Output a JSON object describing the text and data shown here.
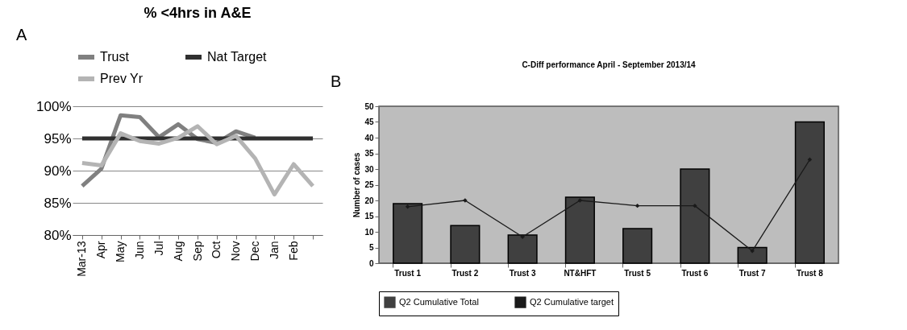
{
  "chart_data": [
    {
      "type": "line",
      "title": "% <4hrs in A&E",
      "annotations": [
        "A"
      ],
      "categories": [
        "Mar-13",
        "Apr",
        "May",
        "Jun",
        "Jul",
        "Aug",
        "Sep",
        "Oct",
        "Nov",
        "Dec",
        "Jan",
        "Feb",
        null
      ],
      "series": [
        {
          "name": "Trust",
          "color": "#808080",
          "values": [
            87.6,
            90.3,
            98.6,
            98.3,
            95.2,
            97.2,
            94.9,
            94.3,
            96.1,
            95.1,
            null,
            null,
            null
          ]
        },
        {
          "name": "Nat Target",
          "color": "#303030",
          "values": [
            95,
            95,
            95,
            95,
            95,
            95,
            95,
            95,
            95,
            95,
            95,
            95,
            95
          ]
        },
        {
          "name": "Prev Yr",
          "color": "#b4b4b4",
          "values": [
            91.2,
            90.8,
            95.8,
            94.6,
            94.2,
            95.1,
            96.9,
            94.1,
            95.4,
            91.9,
            86.3,
            91.0,
            87.6
          ]
        }
      ],
      "ylim": [
        80,
        100
      ],
      "yticks": [
        {
          "value": 80,
          "label": "80%"
        },
        {
          "value": 85,
          "label": "85%"
        },
        {
          "value": 90,
          "label": "90%"
        },
        {
          "value": 95,
          "label": "95%"
        },
        {
          "value": 100,
          "label": "100%"
        }
      ],
      "grid": "y",
      "legend": "top",
      "line_style": "solid"
    },
    {
      "type": "bar",
      "title": "C-Diff performance April - September 2013/14",
      "annotations": [
        "B"
      ],
      "ylabel": "Number of cases",
      "categories": [
        "Trust 1",
        "Trust 2",
        "Trust 3",
        "NT&HFT",
        "Trust 5",
        "Trust 6",
        "Trust 7",
        "Trust 8"
      ],
      "series": [
        {
          "name": "Q2 Cumulative Total",
          "type": "bar",
          "color": "#404040",
          "values": [
            19,
            12,
            9,
            21,
            11,
            30,
            5,
            45
          ]
        },
        {
          "name": "Q2 Cumulative target",
          "type": "line",
          "marker": "diamond",
          "color": "#1a1a1a",
          "values": [
            18.0,
            20.0,
            8.4,
            20.0,
            18.3,
            18.3,
            3.9,
            33.0
          ]
        }
      ],
      "ylim": [
        0,
        50
      ],
      "yticks": [
        0,
        5,
        10,
        15,
        20,
        25,
        30,
        35,
        40,
        45,
        50
      ],
      "grid": false,
      "legend": "bottom"
    }
  ]
}
